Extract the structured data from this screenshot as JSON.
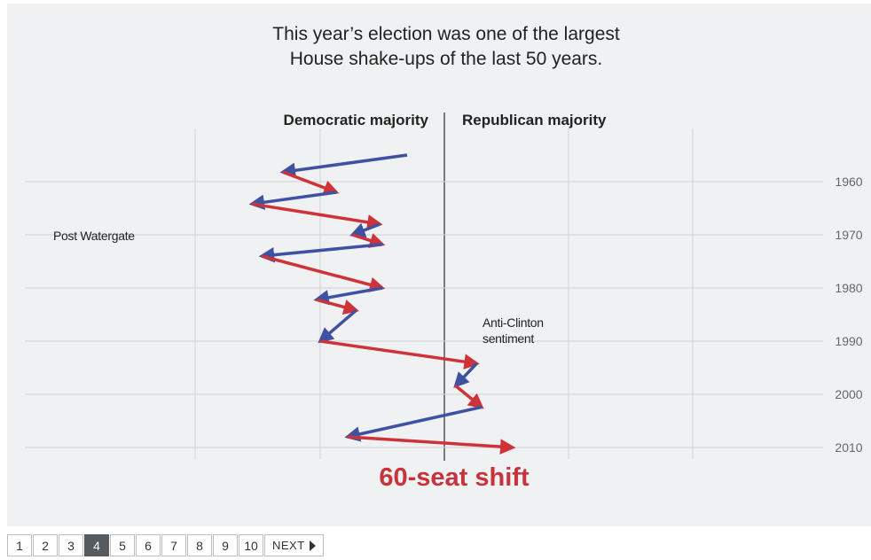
{
  "chart_data": {
    "type": "line",
    "title_lines": [
      "This year’s election was one of the largest",
      "House shake-ups of the last 50 years."
    ],
    "left_header": "Democratic majority",
    "right_header": "Republican majority",
    "y_tick_labels": [
      "1960",
      "1970",
      "1980",
      "1990",
      "2000",
      "2010"
    ],
    "y_ticks": [
      1960,
      1970,
      1980,
      1990,
      2000,
      2010
    ],
    "y_range": [
      1954,
      2012
    ],
    "x_range": [
      -145,
      120
    ],
    "x_unit": "seat margin (Republican minus Democratic)",
    "grid": true,
    "annotations": [
      {
        "text": "Post Watergate",
        "x": -144,
        "y": 1970
      },
      {
        "text": "Anti-Clinton",
        "x": 15,
        "y": 1989.7
      },
      {
        "text": "sentiment",
        "x": 15,
        "y": 1992.6
      }
    ],
    "bottom_label": "60-seat shift",
    "series_colors": {
      "democratic_gain": "#3f51a2",
      "republican_gain": "#cd3338"
    },
    "shifts": [
      {
        "x0": -30,
        "y0": 1955.0,
        "x1": -130,
        "y1": 1958.2,
        "party": "democratic"
      },
      {
        "x0": -130,
        "y0": 1958.2,
        "x1": -87,
        "y1": 1962.0,
        "party": "republican"
      },
      {
        "x0": -87,
        "y0": 1962.0,
        "x1": -155,
        "y1": 1964.2,
        "party": "democratic"
      },
      {
        "x0": -155,
        "y0": 1964.2,
        "x1": -52,
        "y1": 1968.0,
        "party": "republican"
      },
      {
        "x0": -52,
        "y0": 1968.0,
        "x1": -74,
        "y1": 1970.0,
        "party": "democratic"
      },
      {
        "x0": -74,
        "y0": 1970.0,
        "x1": -50,
        "y1": 1971.8,
        "party": "republican"
      },
      {
        "x0": -50,
        "y0": 1971.8,
        "x1": -147,
        "y1": 1974.0,
        "party": "democratic"
      },
      {
        "x0": -147,
        "y0": 1974.0,
        "x1": -50,
        "y1": 1980.0,
        "party": "republican"
      },
      {
        "x0": -50,
        "y0": 1980.0,
        "x1": -103,
        "y1": 1982.2,
        "party": "democratic"
      },
      {
        "x0": -103,
        "y0": 1982.2,
        "x1": -71,
        "y1": 1984.2,
        "party": "republican"
      },
      {
        "x0": -71,
        "y0": 1984.2,
        "x1": -100,
        "y1": 1990.0,
        "party": "democratic"
      },
      {
        "x0": -100,
        "y0": 1990.0,
        "x1": 26,
        "y1": 1994.2,
        "party": "republican"
      },
      {
        "x0": 26,
        "y0": 1994.2,
        "x1": 9,
        "y1": 1998.4,
        "party": "democratic"
      },
      {
        "x0": 9,
        "y0": 1998.4,
        "x1": 30,
        "y1": 2002.4,
        "party": "republican"
      },
      {
        "x0": 30,
        "y0": 2002.4,
        "x1": -78,
        "y1": 2008.0,
        "party": "democratic"
      },
      {
        "x0": -78,
        "y0": 2008.0,
        "x1": 55,
        "y1": 2010.0,
        "party": "republican"
      }
    ]
  },
  "pagination": {
    "pages": [
      "1",
      "2",
      "3",
      "4",
      "5",
      "6",
      "7",
      "8",
      "9",
      "10"
    ],
    "current": "4",
    "next_label": "NEXT"
  }
}
